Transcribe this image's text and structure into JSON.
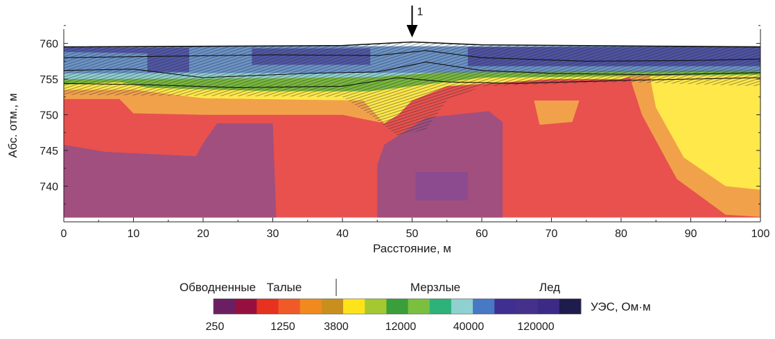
{
  "chart_data": {
    "type": "heatmap",
    "xlabel": "Расстояние, м",
    "ylabel": "Абс. отм., м",
    "xlim": [
      0,
      100
    ],
    "ylim": [
      735,
      762
    ],
    "x_ticks": [
      "0",
      "10",
      "20",
      "30",
      "40",
      "50",
      "60",
      "70",
      "80",
      "90",
      "100"
    ],
    "y_ticks": [
      "740",
      "745",
      "750",
      "755",
      "760"
    ],
    "annotation": "1",
    "annotation_x": 50,
    "legend": {
      "groups": [
        "Обводненные",
        "Талые",
        "Мерзлые",
        "Лед"
      ],
      "unit": "УЭС, Ом·м",
      "tick_labels": [
        "250",
        "1250",
        "3800",
        "12000",
        "40000",
        "120000"
      ],
      "colors": [
        "#6b1f63",
        "#95103e",
        "#e6321e",
        "#f05a28",
        "#f08a1e",
        "#c88f1e",
        "#ffe31a",
        "#a4c832",
        "#3a9f3a",
        "#7bbf3f",
        "#2db27a",
        "#8fd0d0",
        "#4779c4",
        "#3f2f91",
        "#45308c",
        "#3b2a86",
        "#1e1b4d"
      ]
    },
    "section_colors": {
      "thawed_red": "#e8514e",
      "purple": "#a04f7f",
      "deep_purple": "#8d4b8f",
      "orange": "#f2a14b",
      "yellow": "#ffe84a",
      "green": "#79b93c",
      "cyan": "#8fd0d0",
      "blue": "#5b7ac6",
      "navy": "#3f2f91"
    }
  }
}
